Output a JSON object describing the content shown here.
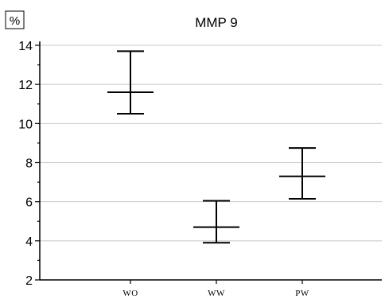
{
  "chart_data": {
    "type": "errorbar",
    "title": "MMP 9",
    "ylabel": "%",
    "xlabel": "",
    "ylim": [
      2,
      14
    ],
    "yticks": [
      2,
      4,
      6,
      8,
      10,
      12,
      14
    ],
    "grid": true,
    "categories": [
      "WO",
      "WW",
      "PW"
    ],
    "mean": [
      11.6,
      4.7,
      7.3
    ],
    "lower": [
      10.5,
      3.9,
      6.15
    ],
    "upper": [
      13.7,
      6.05,
      8.75
    ]
  }
}
